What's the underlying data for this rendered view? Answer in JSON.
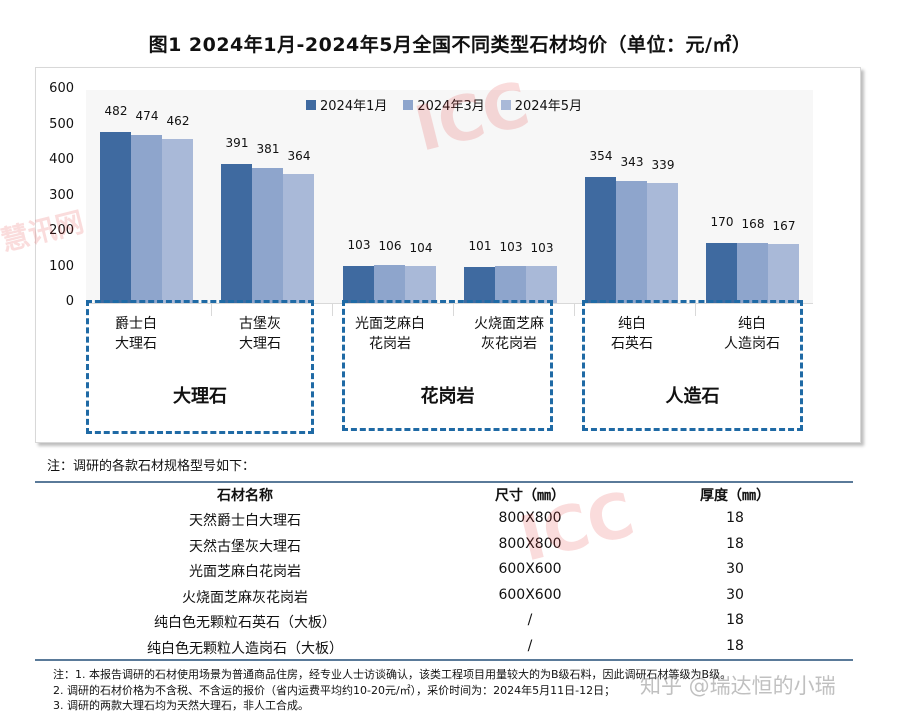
{
  "title": "图1 2024年1月-2024年5月全国不同类型石材均价（单位：元/㎡）",
  "chart_data": {
    "type": "bar",
    "title": "图1 2024年1月-2024年5月全国不同类型石材均价（单位：元/㎡）",
    "xlabel": "",
    "ylabel": "元/㎡",
    "ylim": [
      0,
      600
    ],
    "yticks": [
      0,
      100,
      200,
      300,
      400,
      500,
      600
    ],
    "grid": false,
    "legend_position": "top",
    "categories": [
      "爵士白大理石",
      "古堡灰大理石",
      "光面芝麻白花岗岩",
      "火烧面芝麻灰花岗岩",
      "纯白石英石",
      "纯白人造岗石"
    ],
    "category_labels": [
      "爵士白\n大理石",
      "古堡灰\n大理石",
      "光面芝麻白\n花岗岩",
      "火烧面芝麻\n灰花岗岩",
      "纯白\n石英石",
      "纯白\n人造岗石"
    ],
    "groups": [
      {
        "label": "大理石",
        "categories": [
          "爵士白大理石",
          "古堡灰大理石"
        ]
      },
      {
        "label": "花岗岩",
        "categories": [
          "光面芝麻白花岗岩",
          "火烧面芝麻灰花岗岩"
        ]
      },
      {
        "label": "人造石",
        "categories": [
          "纯白石英石",
          "纯白人造岗石"
        ]
      }
    ],
    "series": [
      {
        "name": "2024年1月",
        "color": "#3f6aa0",
        "values": [
          482,
          391,
          103,
          101,
          354,
          170
        ]
      },
      {
        "name": "2024年3月",
        "color": "#8ea5cc",
        "values": [
          474,
          381,
          106,
          103,
          343,
          168
        ]
      },
      {
        "name": "2024年5月",
        "color": "#a9b9d8",
        "values": [
          462,
          364,
          104,
          103,
          339,
          167
        ]
      }
    ]
  },
  "colors": {
    "group_box": "#1f6aa5",
    "table_rule": "#5a7a99"
  },
  "note_head": "注：调研的各款石材规格型号如下：",
  "spec_table": {
    "headers": [
      "石材名称",
      "尺寸（㎜）",
      "厚度（㎜）"
    ],
    "rows": [
      [
        "天然爵士白大理石",
        "800X800",
        "18"
      ],
      [
        "天然古堡灰大理石",
        "800X800",
        "18"
      ],
      [
        "光面芝麻白花岗岩",
        "600X600",
        "30"
      ],
      [
        "火烧面芝麻灰花岗岩",
        "600X600",
        "30"
      ],
      [
        "纯白色无颗粒石英石（大板）",
        "/",
        "18"
      ],
      [
        "纯白色无颗粒人造岗石（大板）",
        "/",
        "18"
      ]
    ]
  },
  "footnotes": [
    "注：1. 本报告调研的石材使用场景为普通商品住房，经专业人士访谈确认，该类工程项目用量较大的为B级石料，因此调研石材等级为B级。",
    "2. 调研的石材价格为不含税、不含运的报价（省内运费平均约10-20元/㎡），采价时间为：2024年5月11日-12日；",
    "3. 调研的两款大理石均为天然大理石，非人工合成。"
  ],
  "watermarks": {
    "brand": "ICC",
    "brand_cn": "慧讯网",
    "zhihu": "知乎 @瑞达恒的小瑞"
  }
}
